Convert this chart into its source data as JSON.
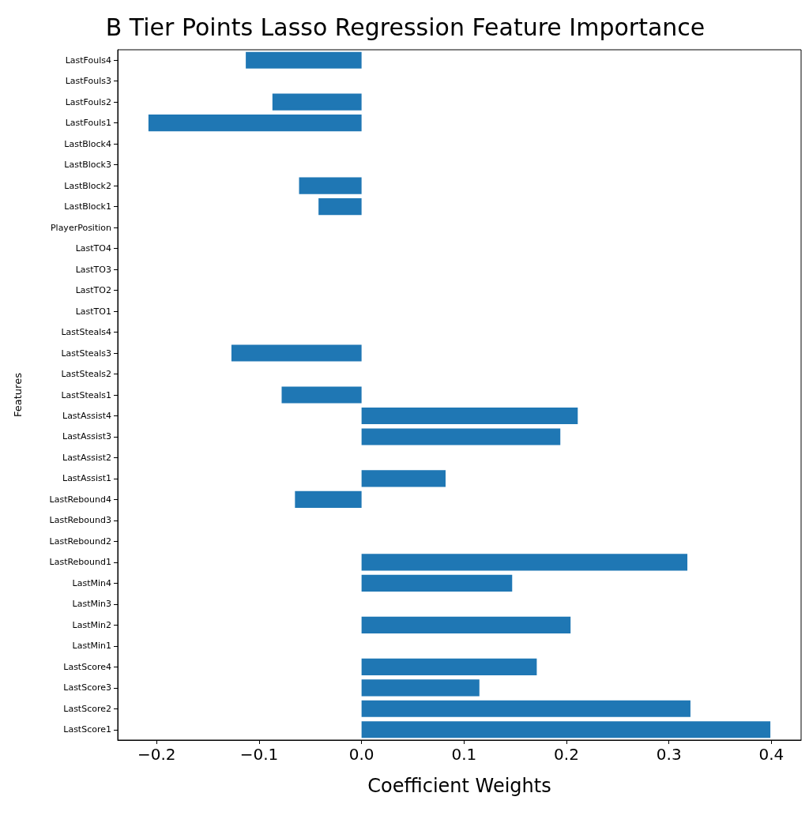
{
  "chart_data": {
    "type": "bar",
    "orientation": "horizontal",
    "title": "B Tier Points Lasso Regression Feature Importance",
    "xlabel": "Coefficient Weights",
    "ylabel": "Features",
    "categories": [
      "LastFouls4",
      "LastFouls3",
      "LastFouls2",
      "LastFouls1",
      "LastBlock4",
      "LastBlock3",
      "LastBlock2",
      "LastBlock1",
      "PlayerPosition",
      "LastTO4",
      "LastTO3",
      "LastTO2",
      "LastTO1",
      "LastSteals4",
      "LastSteals3",
      "LastSteals2",
      "LastSteals1",
      "LastAssist4",
      "LastAssist3",
      "LastAssist2",
      "LastAssist1",
      "LastRebound4",
      "LastRebound3",
      "LastRebound2",
      "LastRebound1",
      "LastMin4",
      "LastMin3",
      "LastMin2",
      "LastMin1",
      "LastScore4",
      "LastScore3",
      "LastScore2",
      "LastScore1"
    ],
    "values": [
      -0.113,
      0,
      -0.087,
      -0.208,
      0,
      0,
      -0.061,
      -0.042,
      0,
      0,
      0,
      0,
      0,
      0,
      -0.127,
      0,
      -0.078,
      0.211,
      0.194,
      0,
      0.082,
      -0.065,
      0,
      0,
      0.318,
      0.147,
      0,
      0.204,
      0,
      0.171,
      0.115,
      0.321,
      0.399
    ],
    "color": "#1f77b4",
    "xlim": [
      -0.238,
      0.429
    ],
    "xticks": [
      {
        "value": -0.2,
        "label": "−0.2"
      },
      {
        "value": -0.1,
        "label": "−0.1"
      },
      {
        "value": 0,
        "label": "0.0"
      },
      {
        "value": 0.1,
        "label": "0.1"
      },
      {
        "value": 0.2,
        "label": "0.2"
      },
      {
        "value": 0.3,
        "label": "0.3"
      },
      {
        "value": 0.4,
        "label": "0.4"
      }
    ],
    "grid": false
  }
}
